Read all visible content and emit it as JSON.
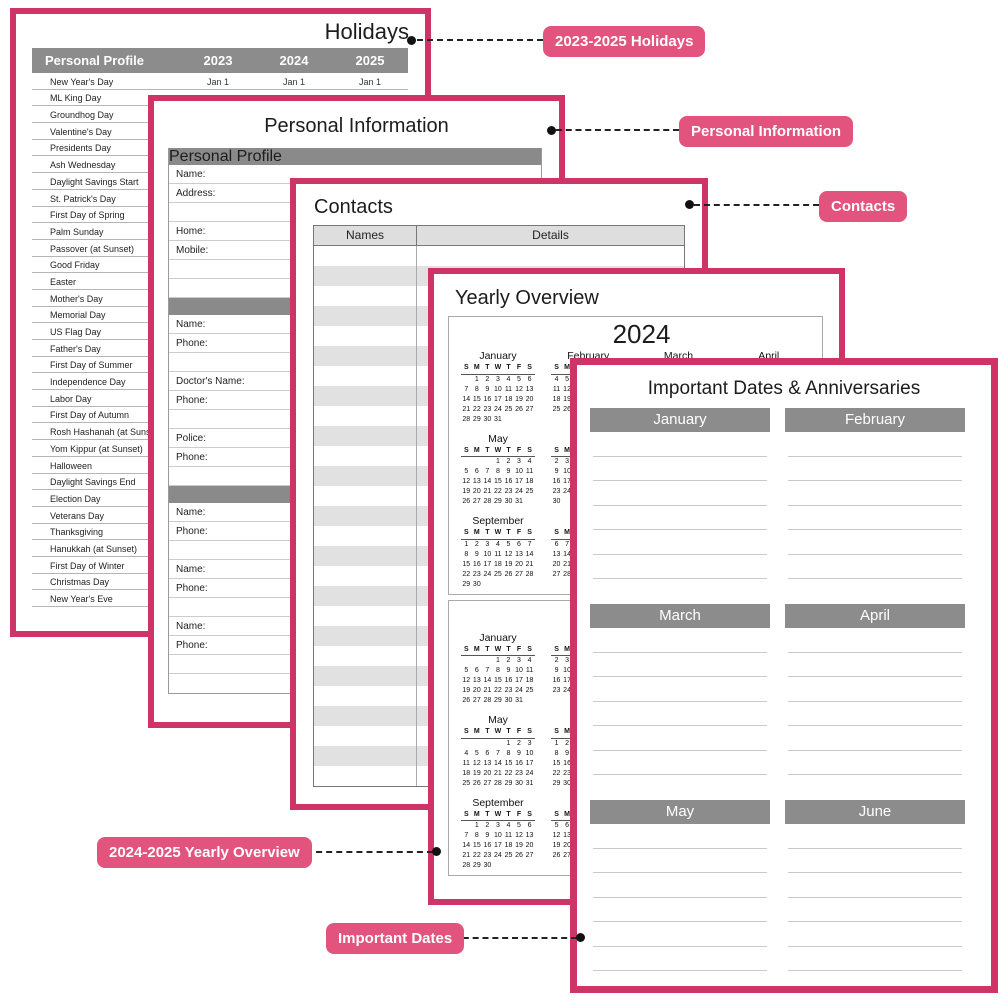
{
  "colors": {
    "page_border_pink": "#cf3466",
    "badge_pink": "#e2537e",
    "header_bar_gray": "#8c8c8c"
  },
  "holidays_page": {
    "title": "Holidays",
    "header": {
      "label": "Personal Profile",
      "years": [
        "2023",
        "2024",
        "2025"
      ]
    },
    "first_row_dates": [
      "Jan 1",
      "Jan 1",
      "Jan 1"
    ],
    "items": [
      "New Year's Day",
      "ML King Day",
      "Groundhog Day",
      "Valentine's Day",
      "Presidents Day",
      "Ash Wednesday",
      "Daylight Savings Start",
      "St. Patrick's Day",
      "First Day of Spring",
      "Palm Sunday",
      "Passover (at Sunset)",
      "Good Friday",
      "Easter",
      "Mother's Day",
      "Memorial Day",
      "US Flag Day",
      "Father's Day",
      "First Day of Summer",
      "Independence Day",
      "Labor Day",
      "First Day of Autumn",
      "Rosh Hashanah (at Sunset)",
      "Yom Kippur (at Sunset)",
      "Halloween",
      "Daylight Savings End",
      "Election Day",
      "Veterans Day",
      "Thanksgiving",
      "Hanukkah (at Sunset)",
      "First Day of Winter",
      "Christmas Day",
      "New Year's Eve"
    ]
  },
  "personal_page": {
    "title": "Personal Information",
    "sections": [
      {
        "bar": "Personal Profile",
        "rows": [
          "Name:",
          "Address:",
          "",
          "Home:",
          "Mobile:",
          "",
          ""
        ]
      },
      {
        "bar": "",
        "rows": [
          "Name:",
          "Phone:",
          "",
          "Doctor's Name:",
          "Phone:",
          "",
          "Police:",
          "Phone:",
          ""
        ]
      },
      {
        "bar": "",
        "rows": [
          "Name:",
          "Phone:",
          "",
          "Name:",
          "Phone:",
          "",
          "Name:",
          "Phone:",
          "",
          ""
        ]
      }
    ]
  },
  "contacts_page": {
    "title": "Contacts",
    "columns": [
      "Names",
      "Details"
    ],
    "row_count": 27
  },
  "yearly_page": {
    "title": "Yearly Overview",
    "day_header": [
      "S",
      "M",
      "T",
      "W",
      "T",
      "F",
      "S"
    ],
    "blocks": [
      {
        "year": "2024",
        "months": [
          {
            "label": "January",
            "weeks": [
              [
                "",
                "1",
                "2",
                "3",
                "4",
                "5",
                "6"
              ],
              [
                "7",
                "8",
                "9",
                "10",
                "11",
                "12",
                "13"
              ],
              [
                "14",
                "15",
                "16",
                "17",
                "18",
                "19",
                "20"
              ],
              [
                "21",
                "22",
                "23",
                "24",
                "25",
                "26",
                "27"
              ],
              [
                "28",
                "29",
                "30",
                "31",
                "",
                "",
                ""
              ]
            ]
          },
          {
            "label": "February",
            "weeks": [
              [
                "",
                "",
                "",
                "",
                "",
                "",
                ""
              ],
              [
                "4",
                "5",
                "",
                "",
                "",
                "",
                ""
              ],
              [
                "11",
                "12",
                "",
                "",
                "",
                "",
                ""
              ],
              [
                "18",
                "19",
                "",
                "",
                "",
                "",
                ""
              ],
              [
                "25",
                "26",
                "",
                "",
                "",
                "",
                ""
              ]
            ]
          },
          {
            "label": "March",
            "weeks": []
          },
          {
            "label": "April",
            "weeks": []
          },
          {
            "label": "May",
            "weeks": [
              [
                "",
                "",
                "",
                "1",
                "2",
                "3",
                "4"
              ],
              [
                "5",
                "6",
                "7",
                "8",
                "9",
                "10",
                "11"
              ],
              [
                "12",
                "13",
                "14",
                "15",
                "16",
                "17",
                "18"
              ],
              [
                "19",
                "20",
                "21",
                "22",
                "23",
                "24",
                "25"
              ],
              [
                "26",
                "27",
                "28",
                "29",
                "30",
                "31",
                ""
              ]
            ]
          },
          {
            "label": "",
            "weeks": [
              [
                "",
                "",
                "",
                "",
                "",
                "",
                ""
              ],
              [
                "2",
                "3",
                "",
                "",
                "",
                "",
                ""
              ],
              [
                "9",
                "10",
                "",
                "",
                "",
                "",
                ""
              ],
              [
                "16",
                "17",
                "",
                "",
                "",
                "",
                ""
              ],
              [
                "23",
                "24",
                "",
                "",
                "",
                "",
                ""
              ],
              [
                "30",
                "",
                "",
                "",
                "",
                "",
                ""
              ]
            ]
          },
          null,
          null,
          {
            "label": "September",
            "weeks": [
              [
                "1",
                "2",
                "3",
                "4",
                "5",
                "6",
                "7"
              ],
              [
                "8",
                "9",
                "10",
                "11",
                "12",
                "13",
                "14"
              ],
              [
                "15",
                "16",
                "17",
                "18",
                "19",
                "20",
                "21"
              ],
              [
                "22",
                "23",
                "24",
                "25",
                "26",
                "27",
                "28"
              ],
              [
                "29",
                "30",
                "",
                "",
                "",
                "",
                ""
              ]
            ]
          },
          {
            "label": "",
            "weeks": [
              [
                "",
                "",
                "",
                "",
                "",
                "",
                ""
              ],
              [
                "6",
                "7",
                "",
                "",
                "",
                "",
                ""
              ],
              [
                "13",
                "14",
                "",
                "",
                "",
                "",
                ""
              ],
              [
                "20",
                "21",
                "",
                "",
                "",
                "",
                ""
              ],
              [
                "27",
                "28",
                "",
                "",
                "",
                "",
                ""
              ]
            ]
          },
          null,
          null
        ]
      },
      {
        "year": "",
        "months": [
          {
            "label": "January",
            "weeks": [
              [
                "",
                "",
                "",
                "1",
                "2",
                "3",
                "4"
              ],
              [
                "5",
                "6",
                "7",
                "8",
                "9",
                "10",
                "11"
              ],
              [
                "12",
                "13",
                "14",
                "15",
                "16",
                "17",
                "18"
              ],
              [
                "19",
                "20",
                "21",
                "22",
                "23",
                "24",
                "25"
              ],
              [
                "26",
                "27",
                "28",
                "29",
                "30",
                "31",
                ""
              ]
            ]
          },
          {
            "label": "",
            "weeks": [
              [
                "",
                "",
                "",
                "",
                "",
                "",
                ""
              ],
              [
                "2",
                "3",
                "",
                "",
                "",
                "",
                ""
              ],
              [
                "9",
                "10",
                "",
                "",
                "",
                "",
                ""
              ],
              [
                "16",
                "17",
                "",
                "",
                "",
                "",
                ""
              ],
              [
                "23",
                "24",
                "",
                "",
                "",
                "",
                ""
              ]
            ]
          },
          null,
          null,
          {
            "label": "May",
            "weeks": [
              [
                "",
                "",
                "",
                "",
                "1",
                "2",
                "3"
              ],
              [
                "4",
                "5",
                "6",
                "7",
                "8",
                "9",
                "10"
              ],
              [
                "11",
                "12",
                "13",
                "14",
                "15",
                "16",
                "17"
              ],
              [
                "18",
                "19",
                "20",
                "21",
                "22",
                "23",
                "24"
              ],
              [
                "25",
                "26",
                "27",
                "28",
                "29",
                "30",
                "31"
              ]
            ]
          },
          {
            "label": "",
            "weeks": [
              [
                "1",
                "2",
                "",
                "",
                "",
                "",
                ""
              ],
              [
                "8",
                "9",
                "",
                "",
                "",
                "",
                ""
              ],
              [
                "15",
                "16",
                "",
                "",
                "",
                "",
                ""
              ],
              [
                "22",
                "23",
                "",
                "",
                "",
                "",
                ""
              ],
              [
                "29",
                "30",
                "",
                "",
                "",
                "",
                ""
              ]
            ]
          },
          null,
          null,
          {
            "label": "September",
            "weeks": [
              [
                "",
                "1",
                "2",
                "3",
                "4",
                "5",
                "6"
              ],
              [
                "7",
                "8",
                "9",
                "10",
                "11",
                "12",
                "13"
              ],
              [
                "14",
                "15",
                "16",
                "17",
                "18",
                "19",
                "20"
              ],
              [
                "21",
                "22",
                "23",
                "24",
                "25",
                "26",
                "27"
              ],
              [
                "28",
                "29",
                "30",
                "",
                "",
                "",
                ""
              ]
            ]
          },
          {
            "label": "",
            "weeks": [
              [
                "",
                "",
                "",
                "",
                "",
                "",
                ""
              ],
              [
                "5",
                "6",
                "",
                "",
                "",
                "",
                ""
              ],
              [
                "12",
                "13",
                "",
                "",
                "",
                "",
                ""
              ],
              [
                "19",
                "20",
                "",
                "",
                "",
                "",
                ""
              ],
              [
                "26",
                "27",
                "",
                "",
                "",
                "",
                ""
              ]
            ]
          },
          null,
          null
        ]
      }
    ]
  },
  "important_page": {
    "title": "Important Dates & Anniversaries",
    "sections": [
      "January",
      "February",
      "March",
      "April",
      "May",
      "June"
    ],
    "lines_per_section": 6
  },
  "callouts": [
    "2023-2025 Holidays",
    "Personal Information",
    "Contacts",
    "2024-2025 Yearly Overview",
    "Important Dates"
  ]
}
